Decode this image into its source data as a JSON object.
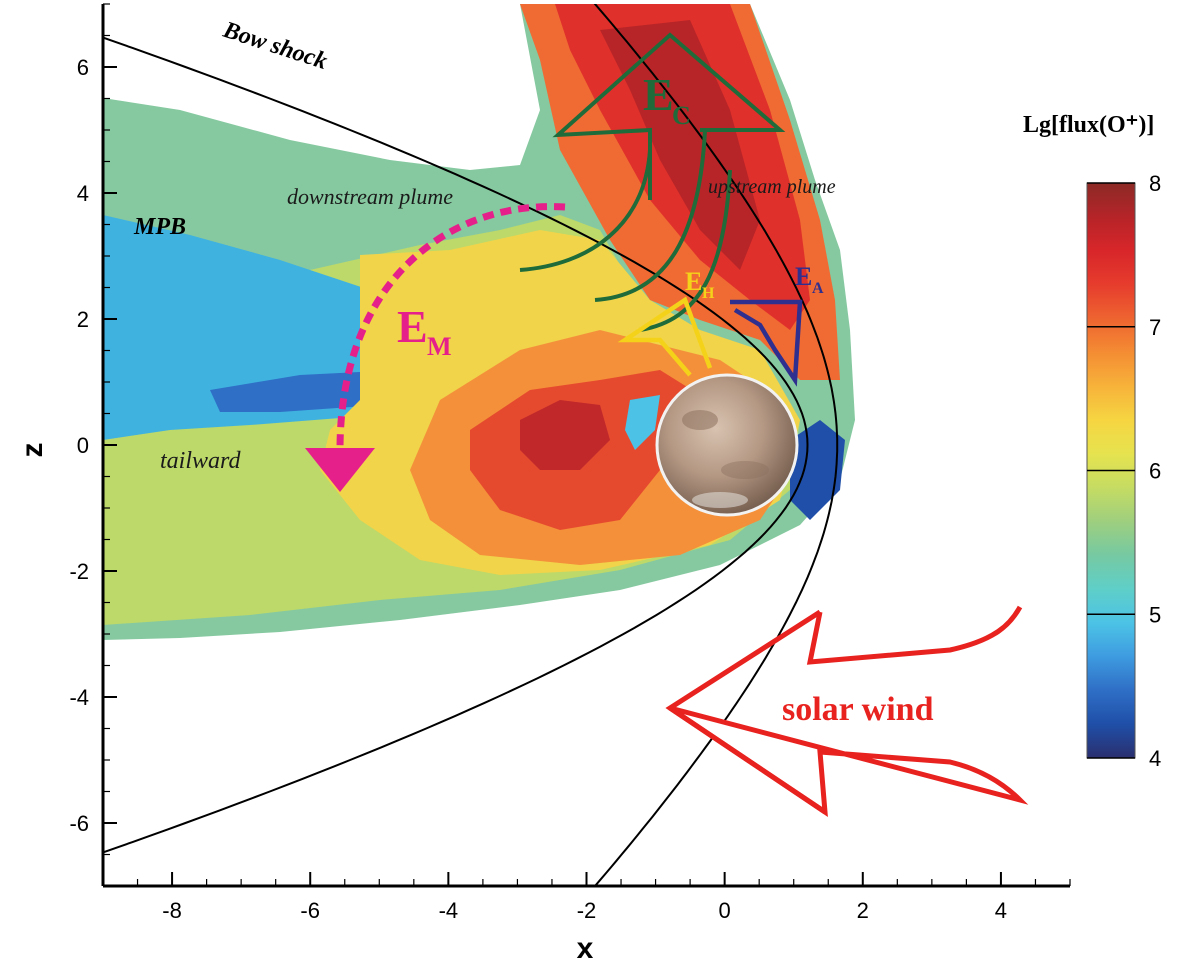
{
  "chart_data": {
    "type": "heatmap",
    "xlabel": "x",
    "ylabel": "z",
    "xlim": [
      -9,
      5
    ],
    "ylim": [
      -7,
      7
    ],
    "x_ticks": [
      "-8",
      "-6",
      "-4",
      "-2",
      "0",
      "2",
      "4"
    ],
    "y_ticks": [
      "6",
      "4",
      "2",
      "0",
      "-2",
      "-4",
      "-6"
    ],
    "colorbar": {
      "title": "Lg[flux(O⁺)]",
      "range": [
        4,
        8
      ],
      "ticks": [
        "8",
        "7",
        "6",
        "5",
        "4"
      ],
      "colors": [
        "#2a2f6e",
        "#1f4fa8",
        "#2f6fc6",
        "#3e9be0",
        "#4cc3e6",
        "#5fcfc8",
        "#76c9a2",
        "#9fcf7e",
        "#c6dc62",
        "#e6e34f",
        "#f6d541",
        "#f7b23a",
        "#f48c33",
        "#ee6330",
        "#e63c2d",
        "#d8262a",
        "#b52428",
        "#8c2a26"
      ]
    },
    "curves": [
      {
        "name": "Bow shock",
        "x0": 1.63,
        "a": 0.04,
        "b": 4.0,
        "c": 0.0
      },
      {
        "name": "MPB",
        "x0": 1.2,
        "a": 0.15,
        "b": 2.1,
        "c": 0.24
      }
    ],
    "sample_flux": [
      {
        "x": -2.5,
        "z": 0.5,
        "value": 7.6
      },
      {
        "x": -1,
        "z": 4.5,
        "value": 7.3
      },
      {
        "x": -6,
        "z": 0.8,
        "value": 5.0
      },
      {
        "x": -5,
        "z": 4.5,
        "value": 6.1
      },
      {
        "x": 1.3,
        "z": -0.8,
        "value": 4.8
      }
    ]
  },
  "annotations": {
    "bow_shock": "Bow shock",
    "mpb": "MPB",
    "downstream_plume": "downstream plume",
    "upstream_plume": "upstream plume",
    "tailward": "tailward",
    "solar_wind": "solar wind",
    "ec_main": "E",
    "ec_sub": "C",
    "em_main": "E",
    "em_sub": "M",
    "eh_main": "E",
    "eh_sub": "H",
    "ea_main": "E",
    "ea_sub": "A"
  },
  "colors": {
    "ec_arrow": "#1f6b3a",
    "em_arrow": "#e6208a",
    "eh_arrow": "#f5d21a",
    "ea_arrow": "#2f2f8f",
    "solar_wind_arrow": "#e8221f",
    "curve": "#000000"
  }
}
